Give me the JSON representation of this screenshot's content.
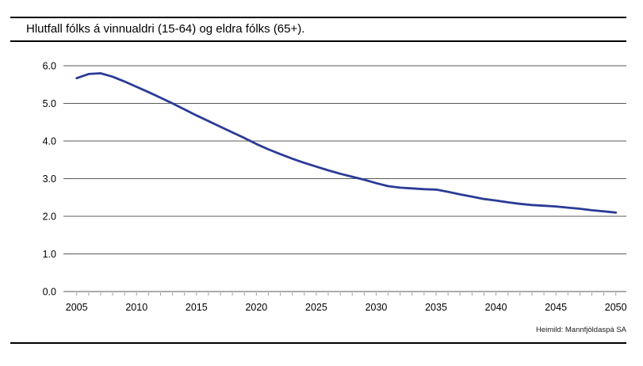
{
  "header": {
    "title": "Hlutfall fólks á vinnualdri (15-64) og eldra fólks (65+)."
  },
  "footer": {
    "source": "Heimild: Mannfjöldaspá SA"
  },
  "chart_data": {
    "type": "line",
    "title": "Hlutfall fólks á vinnualdri (15-64) og eldra fólks (65+).",
    "xlabel": "",
    "ylabel": "",
    "ylim": [
      0.0,
      6.0
    ],
    "grid": true,
    "legend_position": "none",
    "yticks": [
      "0.0",
      "1.0",
      "2.0",
      "3.0",
      "4.0",
      "5.0",
      "6.0"
    ],
    "ytick_values": [
      0,
      1,
      2,
      3,
      4,
      5,
      6
    ],
    "xticks": [
      2005,
      2010,
      2015,
      2020,
      2025,
      2030,
      2035,
      2040,
      2045,
      2050
    ],
    "x": [
      2005,
      2006,
      2007,
      2008,
      2009,
      2010,
      2011,
      2012,
      2013,
      2014,
      2015,
      2016,
      2017,
      2018,
      2019,
      2020,
      2021,
      2022,
      2023,
      2024,
      2025,
      2026,
      2027,
      2028,
      2029,
      2030,
      2031,
      2032,
      2033,
      2034,
      2035,
      2036,
      2037,
      2038,
      2039,
      2040,
      2041,
      2042,
      2043,
      2044,
      2045,
      2046,
      2047,
      2048,
      2049,
      2050
    ],
    "series": [
      {
        "name": "Hlutfall fólks á vinnualdri (15-64) og eldra fólks (65+)",
        "values": [
          5.67,
          5.78,
          5.8,
          5.71,
          5.58,
          5.44,
          5.3,
          5.15,
          5.0,
          4.84,
          4.68,
          4.53,
          4.38,
          4.23,
          4.08,
          3.92,
          3.78,
          3.65,
          3.53,
          3.42,
          3.32,
          3.22,
          3.13,
          3.05,
          2.97,
          2.88,
          2.8,
          2.76,
          2.74,
          2.72,
          2.71,
          2.65,
          2.58,
          2.52,
          2.46,
          2.42,
          2.37,
          2.33,
          2.3,
          2.28,
          2.26,
          2.23,
          2.2,
          2.16,
          2.13,
          2.1
        ]
      }
    ],
    "colors": {
      "line": "#2B3B96",
      "grid": "#58595B",
      "tick": "#999999",
      "text": "#000000"
    }
  }
}
